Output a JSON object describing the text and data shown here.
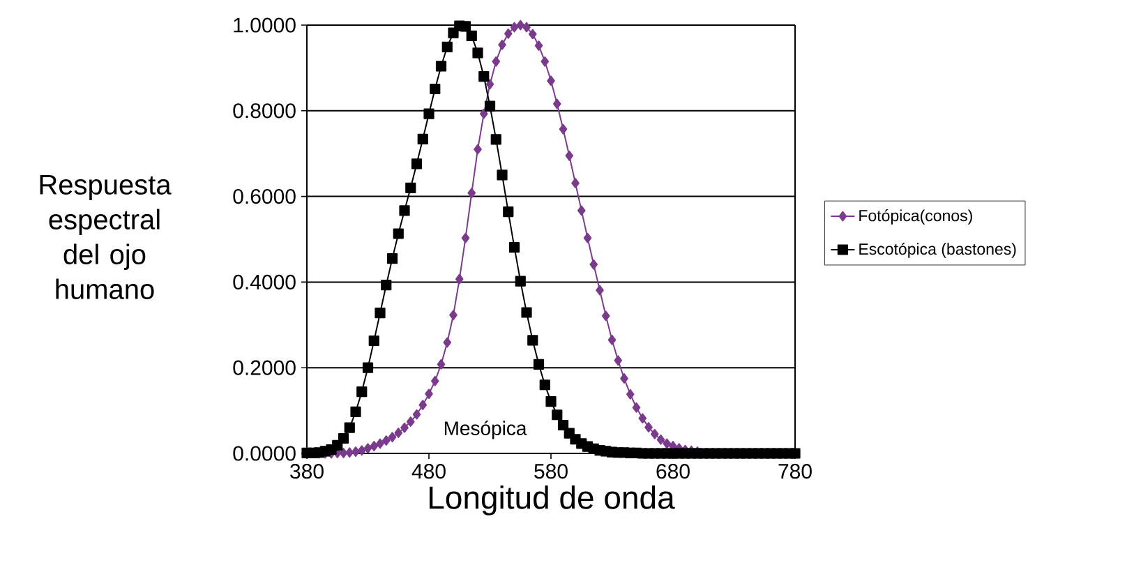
{
  "chart_data": {
    "type": "line",
    "xlabel": "Longitud de onda",
    "ylabel": "Respuesta espectral del ojo humano",
    "xlim": [
      380,
      780
    ],
    "xticks": [
      380,
      480,
      580,
      680,
      780
    ],
    "ylim": [
      0,
      1
    ],
    "yticks": [
      {
        "value": 0,
        "label": "0.0000"
      },
      {
        "value": 0.2,
        "label": "0.2000"
      },
      {
        "value": 0.4,
        "label": "0.4000"
      },
      {
        "value": 0.6,
        "label": "0.6000"
      },
      {
        "value": 0.8,
        "label": "0.8000"
      },
      {
        "value": 1,
        "label": "1.0000"
      }
    ],
    "grid": "y",
    "legend": "right",
    "line_style": "solid",
    "annotations": [
      "Mesópica"
    ],
    "series": [
      {
        "name": "Fotópica(conos)",
        "color": "#7b3b8c",
        "marker": "diamond",
        "x": [
          390,
          395,
          400,
          405,
          410,
          415,
          420,
          425,
          430,
          435,
          440,
          445,
          450,
          455,
          460,
          465,
          470,
          475,
          480,
          485,
          490,
          495,
          500,
          505,
          510,
          515,
          520,
          525,
          530,
          535,
          540,
          545,
          550,
          555,
          560,
          565,
          570,
          575,
          580,
          585,
          590,
          595,
          600,
          605,
          610,
          615,
          620,
          625,
          630,
          635,
          640,
          645,
          650,
          655,
          660,
          665,
          670,
          675,
          680,
          685,
          690,
          695,
          700
        ],
        "values": [
          0.0,
          0.0,
          0.0,
          0.001,
          0.001,
          0.002,
          0.004,
          0.007,
          0.012,
          0.017,
          0.023,
          0.03,
          0.038,
          0.048,
          0.06,
          0.074,
          0.091,
          0.113,
          0.139,
          0.169,
          0.208,
          0.259,
          0.323,
          0.407,
          0.503,
          0.608,
          0.71,
          0.793,
          0.862,
          0.915,
          0.954,
          0.98,
          0.995,
          1.0,
          0.995,
          0.979,
          0.952,
          0.915,
          0.87,
          0.816,
          0.757,
          0.695,
          0.631,
          0.567,
          0.503,
          0.441,
          0.381,
          0.321,
          0.265,
          0.217,
          0.175,
          0.138,
          0.107,
          0.082,
          0.061,
          0.045,
          0.032,
          0.023,
          0.017,
          0.012,
          0.008,
          0.006,
          0.004
        ]
      },
      {
        "name": "Escotópica (bastones)",
        "color": "#000000",
        "marker": "square",
        "x": [
          380,
          385,
          390,
          395,
          400,
          405,
          410,
          415,
          420,
          425,
          430,
          435,
          440,
          445,
          450,
          455,
          460,
          465,
          470,
          475,
          480,
          485,
          490,
          495,
          500,
          505,
          510,
          515,
          520,
          525,
          530,
          535,
          540,
          545,
          550,
          555,
          560,
          565,
          570,
          575,
          580,
          585,
          590,
          595,
          600,
          605,
          610,
          615,
          620,
          625,
          630,
          635,
          640,
          645,
          650,
          655,
          660,
          665,
          670,
          675,
          680,
          685,
          690,
          695,
          700,
          705,
          710,
          715,
          720,
          725,
          730,
          735,
          740,
          745,
          750,
          755,
          760,
          765,
          770,
          775,
          780
        ],
        "values": [
          0.001,
          0.001,
          0.002,
          0.005,
          0.009,
          0.019,
          0.035,
          0.06,
          0.097,
          0.144,
          0.2,
          0.263,
          0.328,
          0.393,
          0.455,
          0.513,
          0.567,
          0.62,
          0.676,
          0.734,
          0.793,
          0.851,
          0.904,
          0.949,
          0.982,
          0.998,
          0.997,
          0.975,
          0.935,
          0.88,
          0.811,
          0.733,
          0.65,
          0.564,
          0.481,
          0.402,
          0.329,
          0.264,
          0.208,
          0.16,
          0.121,
          0.09,
          0.066,
          0.047,
          0.033,
          0.023,
          0.016,
          0.011,
          0.007,
          0.005,
          0.003,
          0.002,
          0.002,
          0.001,
          0.001,
          0.0,
          0.0,
          0.0,
          0.0,
          0.0,
          0.0,
          0.0,
          0.0,
          0.0,
          0.0,
          0.0,
          0.0,
          0.0,
          0.0,
          0.0,
          0.0,
          0.0,
          0.0,
          0.0,
          0.0,
          0.0,
          0.0,
          0.0,
          0.0,
          0.0,
          0.0
        ]
      }
    ]
  }
}
